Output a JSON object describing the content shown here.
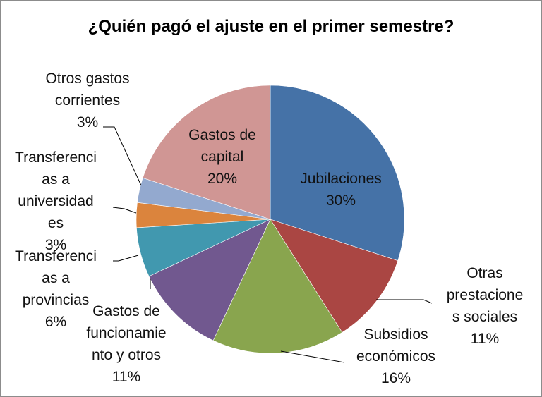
{
  "chart_data": {
    "type": "pie",
    "title": "¿Quién pagó el ajuste en el primer semestre?",
    "slices": [
      {
        "name": "Jubilaciones",
        "value": 30,
        "label_lines": [
          "Jubilaciones",
          "30%"
        ],
        "color": "#4572A7"
      },
      {
        "name": "Otras prestaciones sociales",
        "value": 11,
        "label_lines": [
          "Otras",
          "prestacione",
          "s sociales",
          "11%"
        ],
        "color": "#AA4643"
      },
      {
        "name": "Subsidios económicos",
        "value": 16,
        "label_lines": [
          "Subsidios",
          "económicos",
          "16%"
        ],
        "color": "#89A54E"
      },
      {
        "name": "Gastos de funcionamiento y otros",
        "value": 11,
        "label_lines": [
          "Gastos de",
          "funcionamie",
          "nto y otros",
          "11%"
        ],
        "color": "#71588F"
      },
      {
        "name": "Transferencias a provincias",
        "value": 6,
        "label_lines": [
          "Transferenci",
          "as a",
          "provincias",
          "6%"
        ],
        "color": "#4198AF"
      },
      {
        "name": "Transferencias a universidades",
        "value": 3,
        "label_lines": [
          "Transferenci",
          "as a",
          "universidad",
          "es",
          "3%"
        ],
        "color": "#DB843D"
      },
      {
        "name": "Otros gastos corrientes",
        "value": 3,
        "label_lines": [
          "Otros gastos",
          "corrientes",
          "3%"
        ],
        "color": "#93A9CF"
      },
      {
        "name": "Gastos de capital",
        "value": 20,
        "label_lines": [
          "Gastos de",
          "capital",
          "20%"
        ],
        "color": "#D09694"
      }
    ]
  }
}
